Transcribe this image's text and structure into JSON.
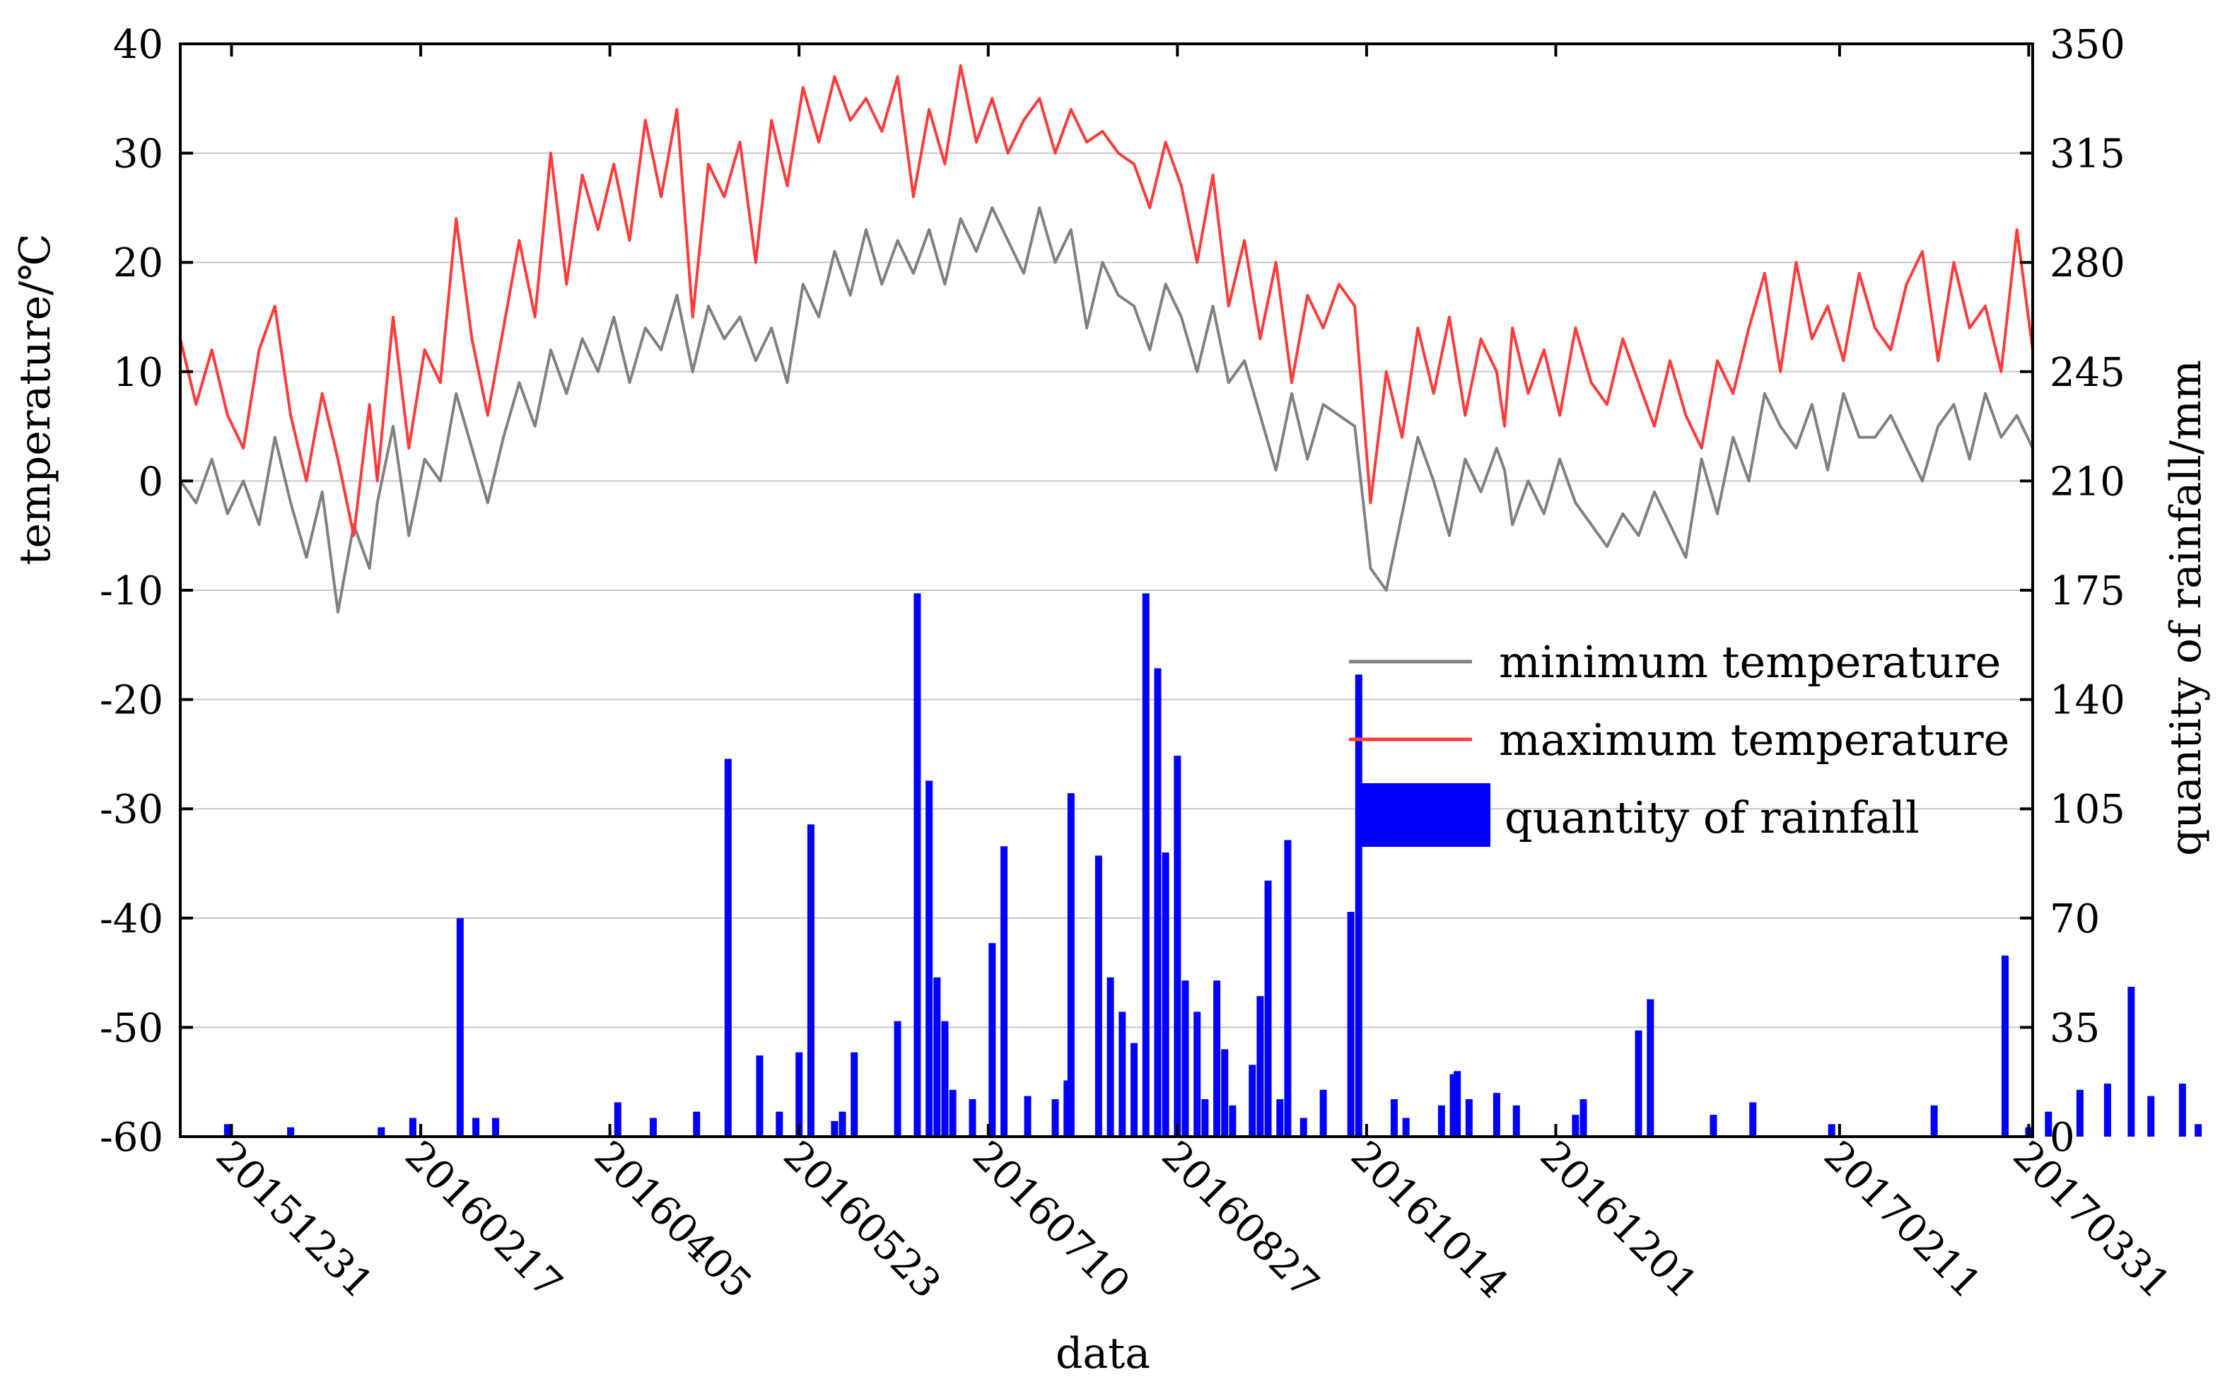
{
  "chart_data": {
    "type": "line+bar",
    "title": "",
    "xlabel": "data",
    "ylabel_left": "temperature/℃",
    "ylabel_right": "quantity of rainfall/mm",
    "ylim_left": [
      -60,
      40
    ],
    "ylim_right": [
      0,
      350
    ],
    "yticks_left": [
      "40",
      "30",
      "20",
      "10",
      "0",
      "-10",
      "-20",
      "-30",
      "-40",
      "-50",
      "-60"
    ],
    "yticks_right": [
      "350",
      "315",
      "280",
      "245",
      "210",
      "175",
      "140",
      "105",
      "70",
      "35",
      "0"
    ],
    "grid": true,
    "x_range_days": [
      0,
      470
    ],
    "x_ticks": [
      {
        "day": 13,
        "label": "20151231"
      },
      {
        "day": 61,
        "label": "20160217"
      },
      {
        "day": 109,
        "label": "20160405"
      },
      {
        "day": 157,
        "label": "20160523"
      },
      {
        "day": 205,
        "label": "20160710"
      },
      {
        "day": 253,
        "label": "20160827"
      },
      {
        "day": 301,
        "label": "20161014"
      },
      {
        "day": 349,
        "label": "20161201"
      },
      {
        "day": 421,
        "label": "20170211"
      },
      {
        "day": 469,
        "label": "20170331"
      }
    ],
    "legend": {
      "position": "right-middle",
      "entries": [
        "minimum temperature",
        "maximum temperature",
        "quantity of rainfall"
      ]
    },
    "colors": {
      "min_temp": "#808080",
      "max_temp": "#ff3b3b",
      "rain": "#0000ff",
      "grid": "#c8c8c8",
      "axis": "#000000"
    },
    "series": [
      {
        "name": "minimum temperature",
        "x": [
          0,
          4,
          8,
          12,
          16,
          20,
          24,
          28,
          32,
          36,
          40,
          44,
          48,
          50,
          54,
          58,
          62,
          66,
          70,
          74,
          78,
          82,
          86,
          90,
          94,
          98,
          102,
          106,
          110,
          114,
          118,
          122,
          126,
          130,
          134,
          138,
          142,
          146,
          150,
          154,
          158,
          162,
          166,
          170,
          174,
          178,
          182,
          186,
          190,
          194,
          198,
          202,
          206,
          210,
          214,
          218,
          222,
          226,
          230,
          234,
          238,
          242,
          246,
          250,
          254,
          258,
          262,
          266,
          270,
          274,
          278,
          282,
          286,
          290,
          294,
          298,
          302,
          306,
          310,
          314,
          318,
          322,
          326,
          330,
          334,
          336,
          338,
          342,
          346,
          350,
          354,
          358,
          362,
          366,
          370,
          374,
          378,
          382,
          386,
          390,
          394,
          398,
          402,
          406,
          410,
          414,
          418,
          422,
          426,
          430,
          434,
          438,
          442,
          446,
          450,
          454,
          458,
          462,
          466,
          470
        ],
        "values": [
          0,
          -2,
          2,
          -3,
          0,
          -4,
          4,
          -2,
          -7,
          -1,
          -12,
          -4,
          -8,
          -2,
          5,
          -5,
          2,
          0,
          8,
          3,
          -2,
          4,
          9,
          5,
          12,
          8,
          13,
          10,
          15,
          9,
          14,
          12,
          17,
          10,
          16,
          13,
          15,
          11,
          14,
          9,
          18,
          15,
          21,
          17,
          23,
          18,
          22,
          19,
          23,
          18,
          24,
          21,
          25,
          22,
          19,
          25,
          20,
          23,
          14,
          20,
          17,
          16,
          12,
          18,
          15,
          10,
          16,
          9,
          11,
          6,
          1,
          8,
          2,
          7,
          6,
          5,
          -8,
          -10,
          -3,
          4,
          0,
          -5,
          2,
          -1,
          3,
          1,
          -4,
          0,
          -3,
          2,
          -2,
          -4,
          -6,
          -3,
          -5,
          -1,
          -4,
          -7,
          2,
          -3,
          4,
          0,
          8,
          5,
          3,
          7,
          1,
          8,
          4,
          4,
          6,
          3,
          0,
          5,
          7,
          2,
          8,
          4,
          6,
          3
        ]
      },
      {
        "name": "maximum temperature",
        "x": [
          0,
          4,
          8,
          12,
          16,
          20,
          24,
          28,
          32,
          36,
          40,
          44,
          48,
          50,
          54,
          58,
          62,
          66,
          70,
          74,
          78,
          82,
          86,
          90,
          94,
          98,
          102,
          106,
          110,
          114,
          118,
          122,
          126,
          130,
          134,
          138,
          142,
          146,
          150,
          154,
          158,
          162,
          166,
          170,
          174,
          178,
          182,
          186,
          190,
          194,
          198,
          202,
          206,
          210,
          214,
          218,
          222,
          226,
          230,
          234,
          238,
          242,
          246,
          250,
          254,
          258,
          262,
          266,
          270,
          274,
          278,
          282,
          286,
          290,
          294,
          298,
          302,
          306,
          310,
          314,
          318,
          322,
          326,
          330,
          334,
          336,
          338,
          342,
          346,
          350,
          354,
          358,
          362,
          366,
          370,
          374,
          378,
          382,
          386,
          390,
          394,
          398,
          402,
          406,
          410,
          414,
          418,
          422,
          426,
          430,
          434,
          438,
          442,
          446,
          450,
          454,
          458,
          462,
          466,
          470
        ],
        "values": [
          13,
          7,
          12,
          6,
          3,
          12,
          16,
          6,
          0,
          8,
          2,
          -5,
          7,
          0,
          15,
          3,
          12,
          9,
          24,
          13,
          6,
          14,
          22,
          15,
          30,
          18,
          28,
          23,
          29,
          22,
          33,
          26,
          34,
          15,
          29,
          26,
          31,
          20,
          33,
          27,
          36,
          31,
          37,
          33,
          35,
          32,
          37,
          26,
          34,
          29,
          38,
          31,
          35,
          30,
          33,
          35,
          30,
          34,
          31,
          32,
          30,
          29,
          25,
          31,
          27,
          20,
          28,
          16,
          22,
          13,
          20,
          9,
          17,
          14,
          18,
          16,
          -2,
          10,
          4,
          14,
          8,
          15,
          6,
          13,
          10,
          5,
          14,
          8,
          12,
          6,
          14,
          9,
          7,
          13,
          9,
          5,
          11,
          6,
          3,
          11,
          8,
          14,
          19,
          10,
          20,
          13,
          16,
          11,
          19,
          14,
          12,
          18,
          21,
          11,
          20,
          14,
          16,
          10,
          23,
          12
        ]
      },
      {
        "name": "quantity of rainfall",
        "x": [
          12,
          28,
          51,
          59,
          71,
          75,
          80,
          111,
          120,
          131,
          139,
          147,
          152,
          157,
          160,
          166,
          168,
          171,
          182,
          187,
          190,
          192,
          194,
          196,
          201,
          206,
          209,
          215,
          222,
          225,
          226,
          233,
          236,
          239,
          242,
          245,
          248,
          250,
          253,
          255,
          258,
          260,
          263,
          265,
          267,
          272,
          274,
          276,
          279,
          281,
          285,
          290,
          297,
          299,
          308,
          311,
          320,
          323,
          324,
          327,
          334,
          339,
          354,
          356,
          373,
          370,
          389,
          399,
          419,
          445,
          463,
          469,
          474,
          482,
          489,
          495,
          500,
          508,
          512
        ],
        "values": [
          4,
          3,
          3,
          6,
          70,
          6,
          6,
          11,
          6,
          8,
          121,
          26,
          8,
          27,
          100,
          5,
          8,
          27,
          37,
          174,
          114,
          51,
          37,
          15,
          12,
          62,
          93,
          13,
          12,
          18,
          110,
          90,
          51,
          40,
          30,
          174,
          150,
          91,
          122,
          50,
          40,
          12,
          50,
          28,
          10,
          23,
          45,
          82,
          12,
          95,
          6,
          15,
          72,
          148,
          12,
          6,
          10,
          20,
          21,
          12,
          14,
          10,
          7,
          12,
          44,
          34,
          7,
          11,
          4,
          10,
          58,
          3,
          8,
          15,
          17,
          48,
          13,
          17,
          4
        ]
      }
    ]
  }
}
